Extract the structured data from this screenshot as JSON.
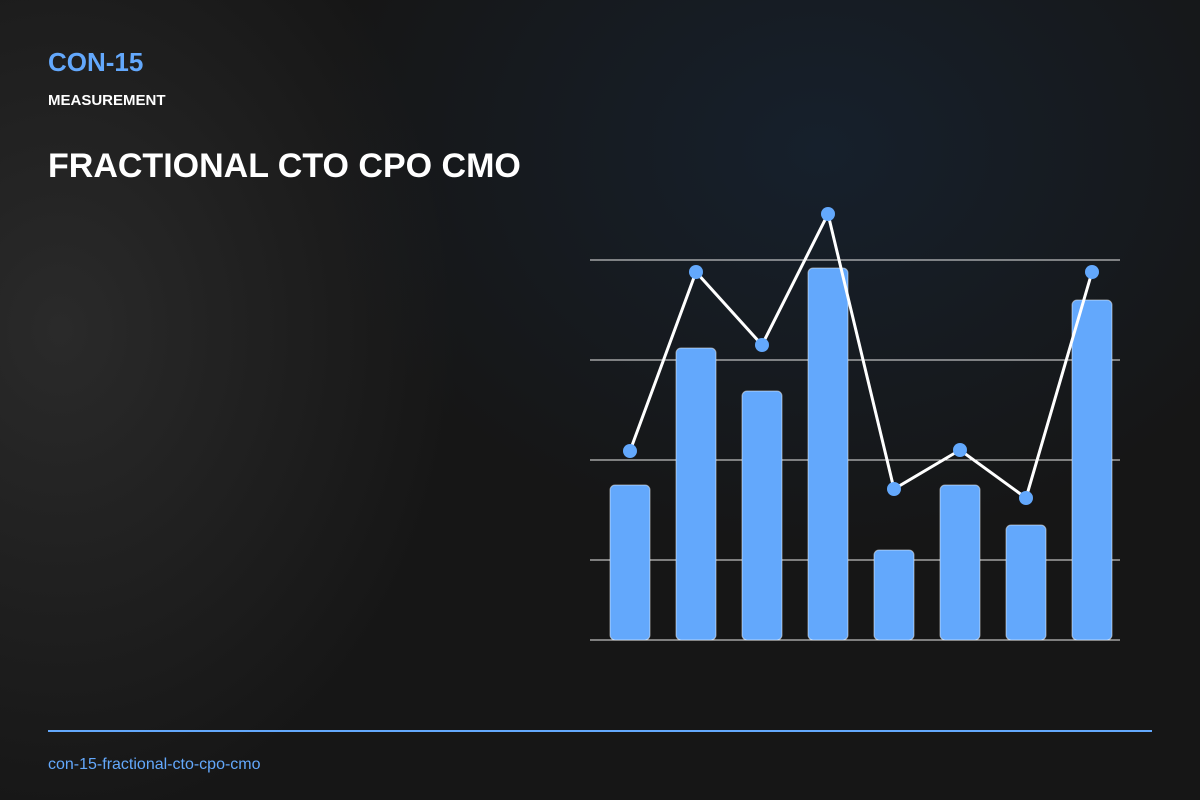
{
  "header": {
    "code": "CON-15",
    "category": "MEASUREMENT",
    "title": "FRACTIONAL CTO CPO CMO"
  },
  "footer": {
    "slug": "con-15-fractional-cto-cpo-cmo"
  },
  "chart_data": {
    "type": "combo",
    "series": [
      {
        "type": "bar",
        "color": "#63a8fc",
        "values": [
          155,
          292,
          249,
          372,
          90,
          155,
          115,
          340
        ]
      },
      {
        "type": "line",
        "color": "#ffffff",
        "marker_color": "#63a8fc",
        "values": [
          189,
          368,
          295,
          426,
          151,
          190,
          142,
          368
        ]
      }
    ],
    "ylim": [
      0,
      430
    ],
    "yticks": [
      0,
      80,
      180,
      280,
      380
    ],
    "grid": true
  }
}
